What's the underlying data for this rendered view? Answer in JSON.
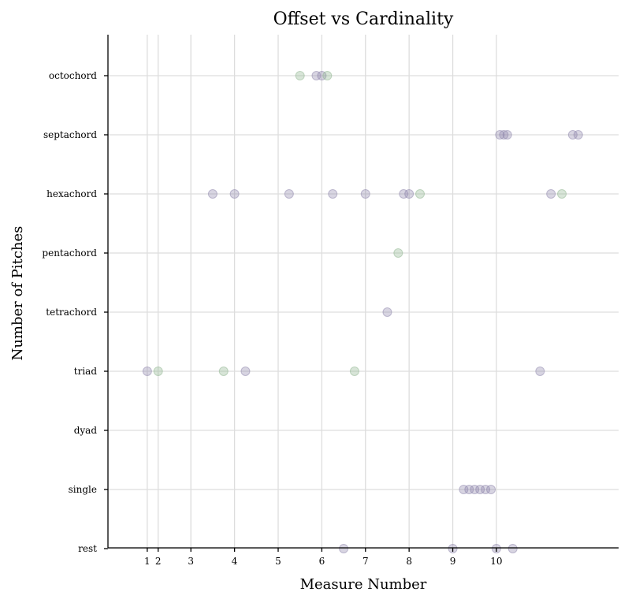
{
  "chart_data": {
    "type": "scatter",
    "title": "Offset vs Cardinality",
    "xlabel": "Measure Number",
    "ylabel": "Number of Pitches",
    "xlim": [
      0.1,
      11.8
    ],
    "x_ticks": [
      1,
      2,
      3,
      4,
      5,
      6,
      7,
      8,
      9,
      10
    ],
    "x_tick_positions": [
      1.0,
      1.25,
      2.0,
      3.0,
      4.0,
      5.0,
      6.0,
      7.0,
      8.0,
      9.0
    ],
    "y_categories": [
      "rest",
      "single",
      "dyad",
      "triad",
      "tetrachord",
      "pentachord",
      "hexachord",
      "septachord",
      "octochord"
    ],
    "grid": true,
    "colors": {
      "purple": "#8e86ab",
      "green": "#8fb58f"
    },
    "points": [
      {
        "x": 4.5,
        "y": "octochord",
        "color": "green"
      },
      {
        "x": 4.875,
        "y": "octochord",
        "color": "purple"
      },
      {
        "x": 5.0,
        "y": "octochord",
        "color": "purple"
      },
      {
        "x": 5.125,
        "y": "octochord",
        "color": "green"
      },
      {
        "x": 9.08,
        "y": "septachord",
        "color": "purple"
      },
      {
        "x": 9.17,
        "y": "septachord",
        "color": "purple"
      },
      {
        "x": 9.25,
        "y": "septachord",
        "color": "purple"
      },
      {
        "x": 10.75,
        "y": "septachord",
        "color": "purple"
      },
      {
        "x": 10.875,
        "y": "septachord",
        "color": "purple"
      },
      {
        "x": 2.5,
        "y": "hexachord",
        "color": "purple"
      },
      {
        "x": 3.0,
        "y": "hexachord",
        "color": "purple"
      },
      {
        "x": 4.25,
        "y": "hexachord",
        "color": "purple"
      },
      {
        "x": 5.25,
        "y": "hexachord",
        "color": "purple"
      },
      {
        "x": 6.0,
        "y": "hexachord",
        "color": "purple"
      },
      {
        "x": 6.875,
        "y": "hexachord",
        "color": "purple"
      },
      {
        "x": 7.0,
        "y": "hexachord",
        "color": "purple"
      },
      {
        "x": 7.25,
        "y": "hexachord",
        "color": "green"
      },
      {
        "x": 10.25,
        "y": "hexachord",
        "color": "purple"
      },
      {
        "x": 10.5,
        "y": "hexachord",
        "color": "green"
      },
      {
        "x": 6.75,
        "y": "pentachord",
        "color": "green"
      },
      {
        "x": 6.5,
        "y": "tetrachord",
        "color": "purple"
      },
      {
        "x": 1.0,
        "y": "triad",
        "color": "purple"
      },
      {
        "x": 1.25,
        "y": "triad",
        "color": "green"
      },
      {
        "x": 2.75,
        "y": "triad",
        "color": "green"
      },
      {
        "x": 3.25,
        "y": "triad",
        "color": "purple"
      },
      {
        "x": 5.75,
        "y": "triad",
        "color": "green"
      },
      {
        "x": 10.0,
        "y": "triad",
        "color": "purple"
      },
      {
        "x": 8.25,
        "y": "single",
        "color": "purple"
      },
      {
        "x": 8.375,
        "y": "single",
        "color": "purple"
      },
      {
        "x": 8.5,
        "y": "single",
        "color": "purple"
      },
      {
        "x": 8.625,
        "y": "single",
        "color": "purple"
      },
      {
        "x": 8.75,
        "y": "single",
        "color": "purple"
      },
      {
        "x": 8.875,
        "y": "single",
        "color": "purple"
      },
      {
        "x": 5.5,
        "y": "rest",
        "color": "purple"
      },
      {
        "x": 8.0,
        "y": "rest",
        "color": "purple"
      },
      {
        "x": 9.0,
        "y": "rest",
        "color": "purple"
      },
      {
        "x": 9.375,
        "y": "rest",
        "color": "purple"
      }
    ]
  }
}
